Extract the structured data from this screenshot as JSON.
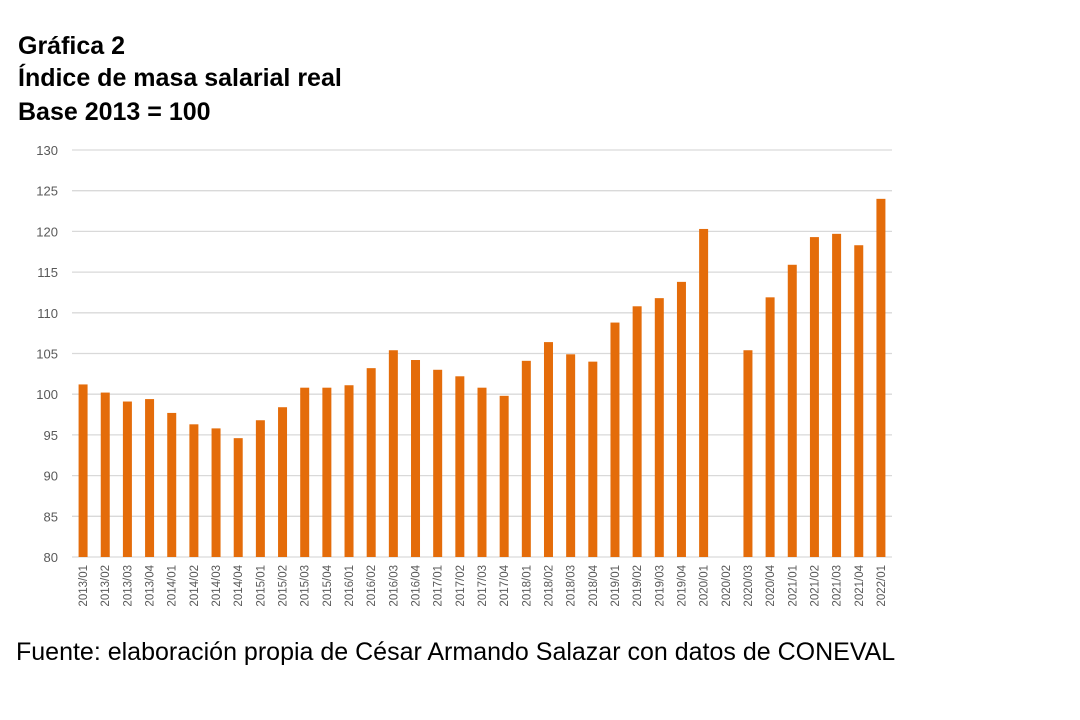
{
  "titles": [
    "Gráfica 2",
    "Índice de masa salarial real",
    "Base 2013 = 100"
  ],
  "source": "Fuente: elaboración propia de César Armando Salazar con datos de CONEVAL",
  "chart_data": {
    "type": "bar",
    "title": "Gráfica 2 Índice de masa salarial real Base 2013 = 100",
    "xlabel": "",
    "ylabel": "",
    "ylim": [
      80,
      130
    ],
    "yticks": [
      80,
      85,
      90,
      95,
      100,
      105,
      110,
      115,
      120,
      125,
      130
    ],
    "grid": true,
    "color": "#E46C0A",
    "categories": [
      "2013/01",
      "2013/02",
      "2013/03",
      "2013/04",
      "2014/01",
      "2014/02",
      "2014/03",
      "2014/04",
      "2015/01",
      "2015/02",
      "2015/03",
      "2015/04",
      "2016/01",
      "2016/02",
      "2016/03",
      "2016/04",
      "2017/01",
      "2017/02",
      "2017/03",
      "2017/04",
      "2018/01",
      "2018/02",
      "2018/03",
      "2018/04",
      "2019/01",
      "2019/02",
      "2019/03",
      "2019/04",
      "2020/01",
      "2020/02",
      "2020/03",
      "2020/04",
      "2021/01",
      "2021/02",
      "2021/03",
      "2021/04",
      "2022/01"
    ],
    "values": [
      101.2,
      100.2,
      99.1,
      99.4,
      97.7,
      96.3,
      95.8,
      94.6,
      96.8,
      98.4,
      100.8,
      100.8,
      101.1,
      103.2,
      105.4,
      104.2,
      103.0,
      102.2,
      100.8,
      99.8,
      104.1,
      106.4,
      104.9,
      104.0,
      108.8,
      110.8,
      111.8,
      113.8,
      120.3,
      null,
      105.4,
      111.9,
      115.9,
      119.3,
      119.7,
      118.3,
      124.0
    ]
  }
}
